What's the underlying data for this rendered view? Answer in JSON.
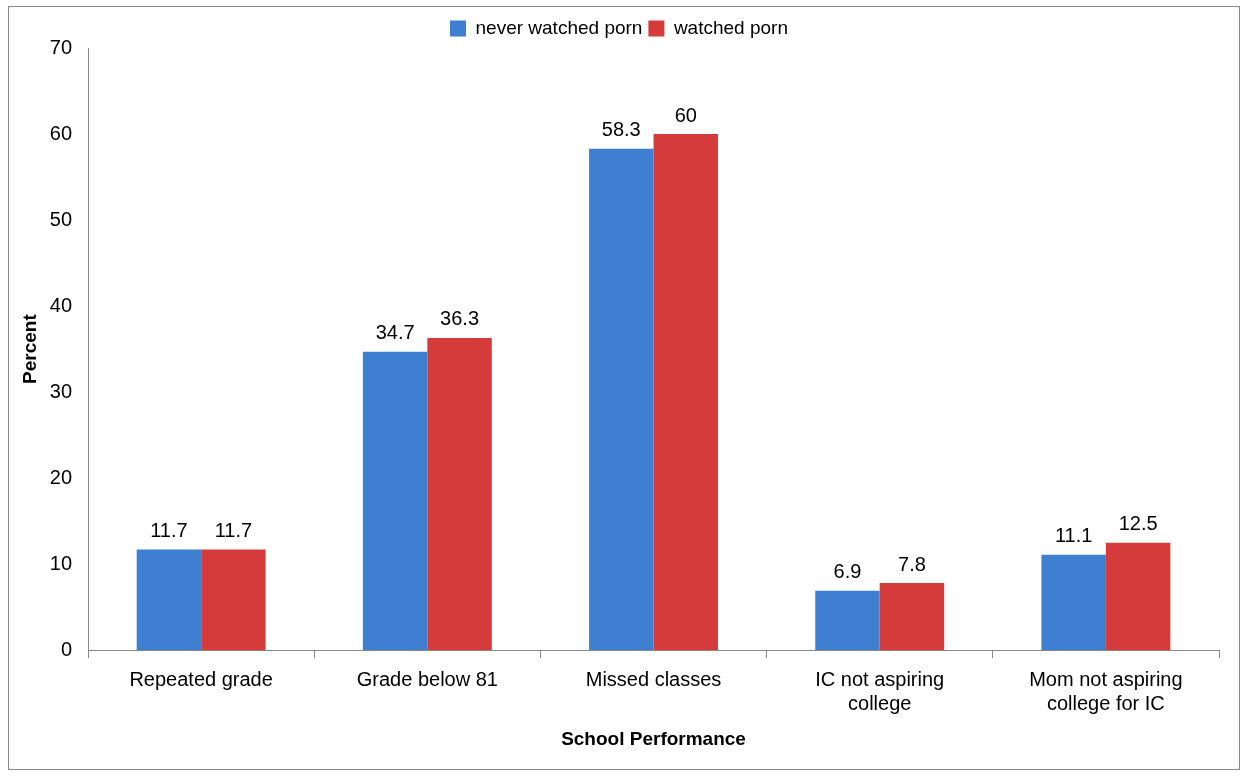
{
  "chart_data": {
    "type": "bar",
    "xlabel": "School Performance",
    "ylabel": "Percent",
    "categories": [
      "Repeated grade",
      "Grade below 81",
      "Missed classes",
      "IC not aspiring college",
      "Mom not aspiring college for IC"
    ],
    "series": [
      {
        "name": "never watched porn",
        "color": "#3e7fd2",
        "values": [
          11.7,
          34.7,
          58.3,
          6.9,
          11.1
        ]
      },
      {
        "name": "watched porn",
        "color": "#d63b3b",
        "values": [
          11.7,
          36.3,
          60,
          7.8,
          12.5
        ]
      }
    ],
    "ylim": [
      0,
      70
    ],
    "yticks": [
      0,
      10,
      20,
      30,
      40,
      50,
      60,
      70
    ],
    "grid": false,
    "legend": "top",
    "data_labels": true
  }
}
